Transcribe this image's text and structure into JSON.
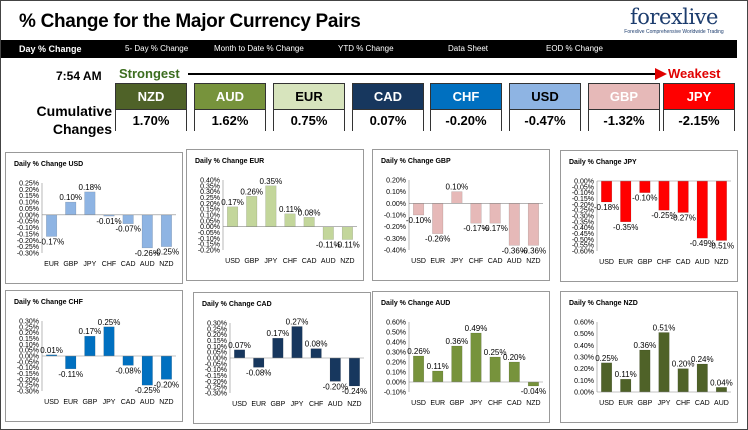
{
  "header": {
    "title": "% Change for the Major Currency Pairs",
    "logo_text": "forexlive",
    "logo_tagline": "Forexlive Comprehensive Worldwide Trading"
  },
  "tabs": [
    {
      "label": "Day % Change",
      "active": true
    },
    {
      "label": "5- Day % Change",
      "active": false
    },
    {
      "label": "Month to Date % Change",
      "active": false
    },
    {
      "label": "YTD % Change",
      "active": false
    },
    {
      "label": "Data Sheet",
      "active": false
    },
    {
      "label": "EOD % Change",
      "active": false
    }
  ],
  "summary": {
    "time": "7:54 AM",
    "strongest_label": "Strongest",
    "weakest_label": "Weakest",
    "cumulative_line1": "Cumulative",
    "cumulative_line2": "Changes",
    "currencies": [
      {
        "name": "NZD",
        "value": "1.70%",
        "color": "#4f6228",
        "text_color": "#ffffff"
      },
      {
        "name": "AUD",
        "value": "1.62%",
        "color": "#77933c",
        "text_color": "#ffffff"
      },
      {
        "name": "EUR",
        "value": "0.75%",
        "color": "#d7e4bd",
        "text_color": "#000000"
      },
      {
        "name": "CAD",
        "value": "0.07%",
        "color": "#17375e",
        "text_color": "#ffffff"
      },
      {
        "name": "CHF",
        "value": "-0.20%",
        "color": "#0070c0",
        "text_color": "#ffffff"
      },
      {
        "name": "USD",
        "value": "-0.47%",
        "color": "#8eb4e3",
        "text_color": "#000000"
      },
      {
        "name": "GBP",
        "value": "-1.32%",
        "color": "#e6b9b8",
        "text_color": "#ffffff"
      },
      {
        "name": "JPY",
        "value": "-2.15%",
        "color": "#ff0000",
        "text_color": "#ffffff"
      }
    ]
  },
  "chart_data": [
    {
      "type": "bar",
      "title": "Daily % Change USD",
      "categories": [
        "EUR",
        "GBP",
        "JPY",
        "CHF",
        "CAD",
        "AUD",
        "NZD"
      ],
      "values": [
        -0.17,
        0.1,
        0.18,
        -0.01,
        -0.07,
        -0.26,
        -0.25
      ],
      "labels": [
        "-0.17%",
        "0.10%",
        "0.18%",
        "-0.01%",
        "-0.07%",
        "-0.26%",
        "-0.25%"
      ],
      "ylim": [
        -0.3,
        0.25
      ],
      "ticks": [
        0.25,
        0.2,
        0.15,
        0.1,
        0.05,
        0.0,
        -0.05,
        -0.1,
        -0.15,
        -0.2,
        -0.25,
        -0.3
      ],
      "tick_labels": [
        "0.25%",
        "0.20%",
        "0.15%",
        "0.10%",
        "0.05%",
        "0.00%",
        "-0.05%",
        "-0.10%",
        "-0.15%",
        "-0.20%",
        "-0.25%",
        "-0.30%"
      ],
      "color": "#8eb4e3"
    },
    {
      "type": "bar",
      "title": "Daily % Change EUR",
      "categories": [
        "USD",
        "GBP",
        "JPY",
        "CHF",
        "CAD",
        "AUD",
        "NZD"
      ],
      "values": [
        0.17,
        0.26,
        0.35,
        0.11,
        0.08,
        -0.11,
        -0.11
      ],
      "labels": [
        "0.17%",
        "0.26%",
        "0.35%",
        "0.11%",
        "0.08%",
        "-0.11%",
        "-0.11%"
      ],
      "ylim": [
        -0.2,
        0.4
      ],
      "ticks": [
        0.4,
        0.35,
        0.3,
        0.25,
        0.2,
        0.15,
        0.1,
        0.05,
        0.0,
        -0.05,
        -0.1,
        -0.15,
        -0.2
      ],
      "tick_labels": [
        "0.40%",
        "0.35%",
        "0.30%",
        "0.25%",
        "0.20%",
        "0.15%",
        "0.10%",
        "0.05%",
        "0.00%",
        "-0.05%",
        "-0.10%",
        "-0.15%",
        "-0.20%"
      ],
      "color": "#c3d69b"
    },
    {
      "type": "bar",
      "title": "Daily % Change GBP",
      "categories": [
        "USD",
        "EUR",
        "JPY",
        "CHF",
        "CAD",
        "AUD",
        "NZD"
      ],
      "values": [
        -0.1,
        -0.26,
        0.1,
        -0.17,
        -0.17,
        -0.36,
        -0.36
      ],
      "labels": [
        "-0.10%",
        "-0.26%",
        "0.10%",
        "-0.17%",
        "-0.17%",
        "-0.36%",
        "-0.36%"
      ],
      "ylim": [
        -0.4,
        0.2
      ],
      "ticks": [
        0.2,
        0.1,
        0.0,
        -0.1,
        -0.2,
        -0.3,
        -0.4
      ],
      "tick_labels": [
        "0.20%",
        "0.10%",
        "0.00%",
        "-0.10%",
        "-0.20%",
        "-0.30%",
        "-0.40%"
      ],
      "color": "#e6b9b8"
    },
    {
      "type": "bar",
      "title": "Daily % Change JPY",
      "categories": [
        "USD",
        "EUR",
        "GBP",
        "CHF",
        "CAD",
        "AUD",
        "NZD"
      ],
      "values": [
        -0.18,
        -0.35,
        -0.1,
        -0.25,
        -0.27,
        -0.49,
        -0.51
      ],
      "labels": [
        "-0.18%",
        "-0.35%",
        "-0.10%",
        "-0.25%",
        "-0.27%",
        "-0.49%",
        "-0.51%"
      ],
      "ylim": [
        -0.6,
        0.0
      ],
      "ticks": [
        0.0,
        -0.05,
        -0.1,
        -0.15,
        -0.2,
        -0.25,
        -0.3,
        -0.35,
        -0.4,
        -0.45,
        -0.5,
        -0.55,
        -0.6
      ],
      "tick_labels": [
        "0.00%",
        "-0.05%",
        "-0.10%",
        "-0.15%",
        "-0.20%",
        "-0.25%",
        "-0.30%",
        "-0.35%",
        "-0.40%",
        "-0.45%",
        "-0.50%",
        "-0.55%",
        "-0.60%"
      ],
      "color": "#ff0000"
    },
    {
      "type": "bar",
      "title": "Daily % Change CHF",
      "categories": [
        "USD",
        "EUR",
        "GBP",
        "JPY",
        "CAD",
        "AUD",
        "NZD"
      ],
      "values": [
        0.01,
        -0.11,
        0.17,
        0.25,
        -0.08,
        -0.25,
        -0.2
      ],
      "labels": [
        "0.01%",
        "-0.11%",
        "0.17%",
        "0.25%",
        "-0.08%",
        "-0.25%",
        "-0.20%"
      ],
      "ylim": [
        -0.3,
        0.3
      ],
      "ticks": [
        0.3,
        0.25,
        0.2,
        0.15,
        0.1,
        0.05,
        0.0,
        -0.05,
        -0.1,
        -0.15,
        -0.2,
        -0.25,
        -0.3
      ],
      "tick_labels": [
        "0.30%",
        "0.25%",
        "0.20%",
        "0.15%",
        "0.10%",
        "0.05%",
        "0.00%",
        "-0.05%",
        "-0.10%",
        "-0.15%",
        "-0.20%",
        "-0.25%",
        "-0.30%"
      ],
      "color": "#0070c0"
    },
    {
      "type": "bar",
      "title": "Daily % Change CAD",
      "categories": [
        "USD",
        "EUR",
        "GBP",
        "JPY",
        "CHF",
        "AUD",
        "NZD"
      ],
      "values": [
        0.07,
        -0.08,
        0.17,
        0.27,
        0.08,
        -0.2,
        -0.24
      ],
      "labels": [
        "0.07%",
        "-0.08%",
        "0.17%",
        "0.27%",
        "0.08%",
        "-0.20%",
        "-0.24%"
      ],
      "ylim": [
        -0.3,
        0.3
      ],
      "ticks": [
        0.3,
        0.25,
        0.2,
        0.15,
        0.1,
        0.05,
        0.0,
        -0.05,
        -0.1,
        -0.15,
        -0.2,
        -0.25,
        -0.3
      ],
      "tick_labels": [
        "0.30%",
        "0.25%",
        "0.20%",
        "0.15%",
        "0.10%",
        "0.05%",
        "0.00%",
        "-0.05%",
        "-0.10%",
        "-0.15%",
        "-0.20%",
        "-0.25%",
        "-0.30%"
      ],
      "color": "#17375e"
    },
    {
      "type": "bar",
      "title": "Daily % Change AUD",
      "categories": [
        "USD",
        "EUR",
        "GBP",
        "JPY",
        "CHF",
        "CAD",
        "NZD"
      ],
      "values": [
        0.26,
        0.11,
        0.36,
        0.49,
        0.25,
        0.2,
        -0.04
      ],
      "labels": [
        "0.26%",
        "0.11%",
        "0.36%",
        "0.49%",
        "0.25%",
        "0.20%",
        "-0.04%"
      ],
      "ylim": [
        -0.1,
        0.6
      ],
      "ticks": [
        0.6,
        0.5,
        0.4,
        0.3,
        0.2,
        0.1,
        0.0,
        -0.1
      ],
      "tick_labels": [
        "0.60%",
        "0.50%",
        "0.40%",
        "0.30%",
        "0.20%",
        "0.10%",
        "0.00%",
        "-0.10%"
      ],
      "color": "#77933c"
    },
    {
      "type": "bar",
      "title": "Daily % Change NZD",
      "categories": [
        "USD",
        "EUR",
        "GBP",
        "JPY",
        "CHF",
        "CAD",
        "AUD"
      ],
      "values": [
        0.25,
        0.11,
        0.36,
        0.51,
        0.2,
        0.24,
        0.04
      ],
      "labels": [
        "0.25%",
        "0.11%",
        "0.36%",
        "0.51%",
        "0.20%",
        "0.24%",
        "0.04%"
      ],
      "ylim": [
        0.0,
        0.6
      ],
      "ticks": [
        0.6,
        0.5,
        0.4,
        0.3,
        0.2,
        0.1,
        0.0
      ],
      "tick_labels": [
        "0.60%",
        "0.50%",
        "0.40%",
        "0.30%",
        "0.20%",
        "0.10%",
        "0.00%"
      ],
      "color": "#4f6228"
    }
  ]
}
